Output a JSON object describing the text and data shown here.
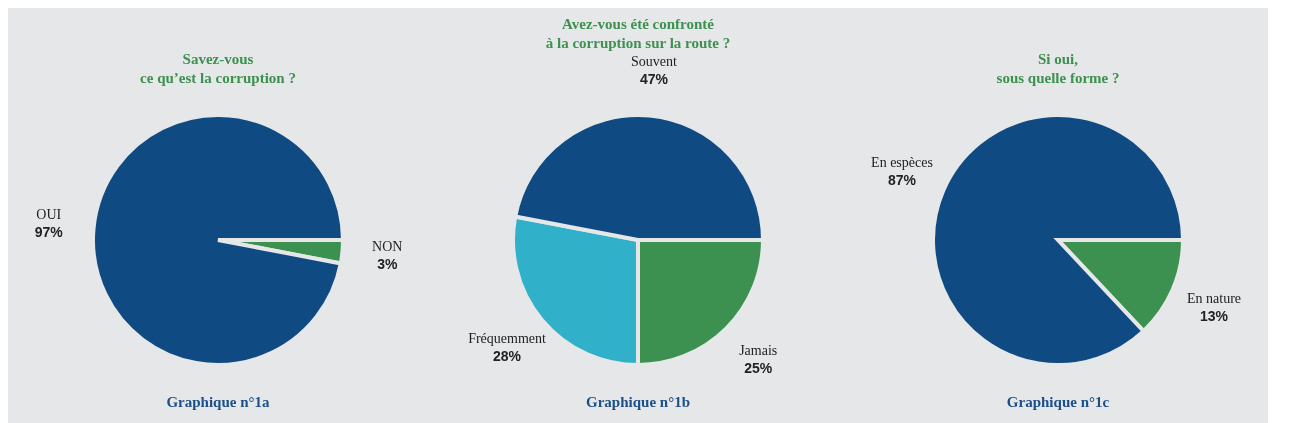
{
  "chart_data": [
    {
      "type": "pie",
      "title": "Savez-vous\nce qu’est la corruption ?",
      "categories": [
        "NON",
        "OUI"
      ],
      "values": [
        3,
        97
      ],
      "colors": [
        "#3d9150",
        "#0f4a82"
      ],
      "value_labels": [
        "3%",
        "97%"
      ],
      "annotations": [
        "Graphique n°1a"
      ]
    },
    {
      "type": "pie",
      "title": "Avez-vous été confronté\nà la corruption sur la route ?",
      "categories": [
        "Jamais",
        "Fréquemment",
        "Souvent"
      ],
      "values": [
        25,
        28,
        47
      ],
      "colors": [
        "#3d9150",
        "#31b1c9",
        "#0f4a82"
      ],
      "value_labels": [
        "25%",
        "28%",
        "47%"
      ],
      "annotations": [
        "Graphique n°1b"
      ]
    },
    {
      "type": "pie",
      "title": "Si oui,\nsous quelle forme ?",
      "categories": [
        "En nature",
        "En espèces"
      ],
      "values": [
        13,
        87
      ],
      "colors": [
        "#3d9150",
        "#0f4a82"
      ],
      "value_labels": [
        "13%",
        "87%"
      ],
      "annotations": [
        "Graphique n°1c"
      ]
    }
  ]
}
